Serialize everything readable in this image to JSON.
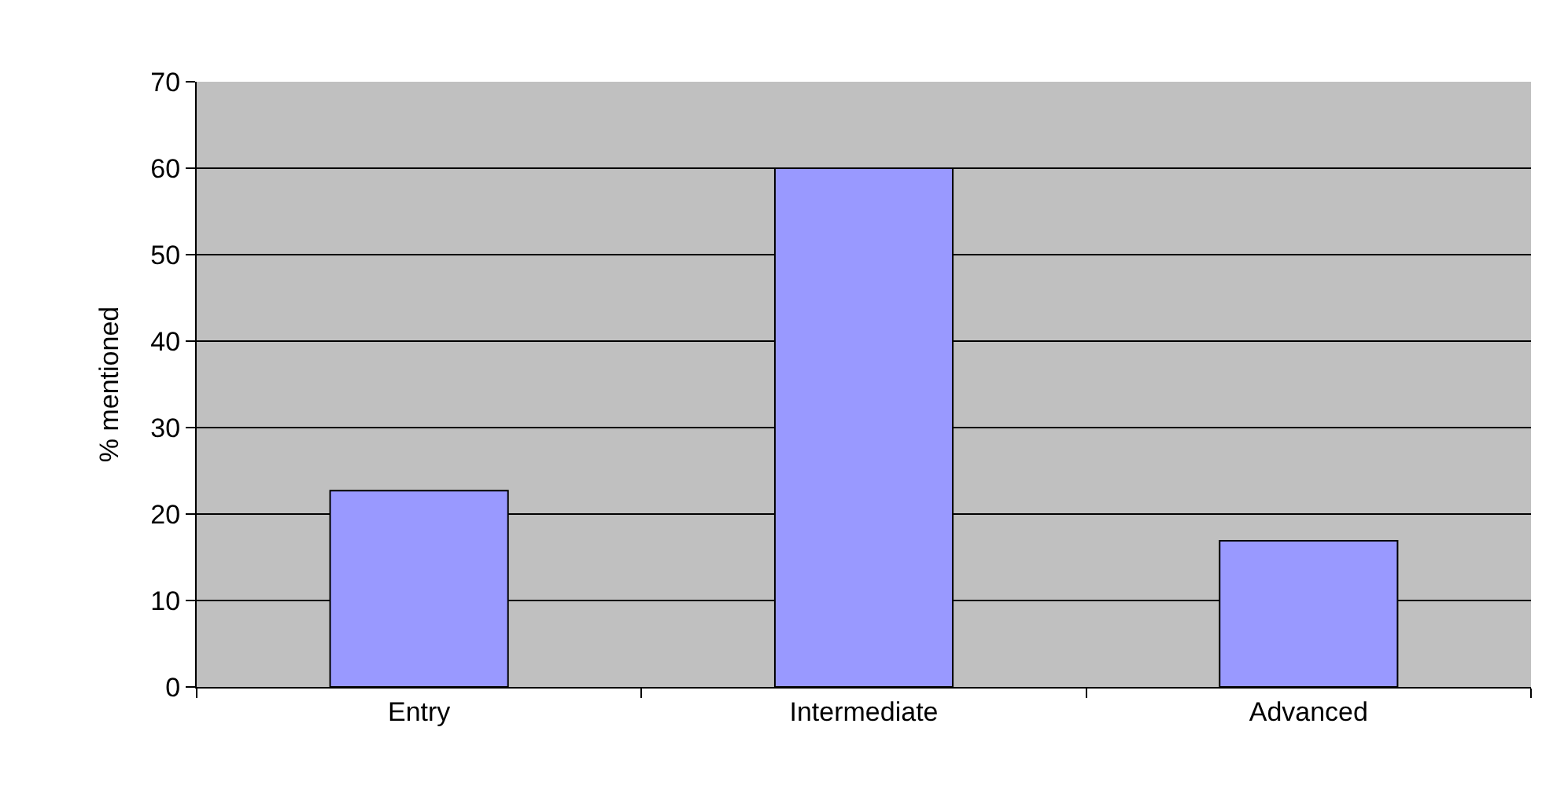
{
  "chart_data": {
    "type": "bar",
    "ylabel": "% mentioned",
    "categories": [
      "Entry",
      "Intermediate",
      "Advanced"
    ],
    "values": [
      22.7,
      60,
      16.9
    ],
    "color": "#9999ff",
    "ylim": [
      0,
      70
    ],
    "yticks": [
      0,
      10,
      20,
      30,
      40,
      50,
      60,
      70
    ],
    "grid": "y",
    "legend": false
  }
}
